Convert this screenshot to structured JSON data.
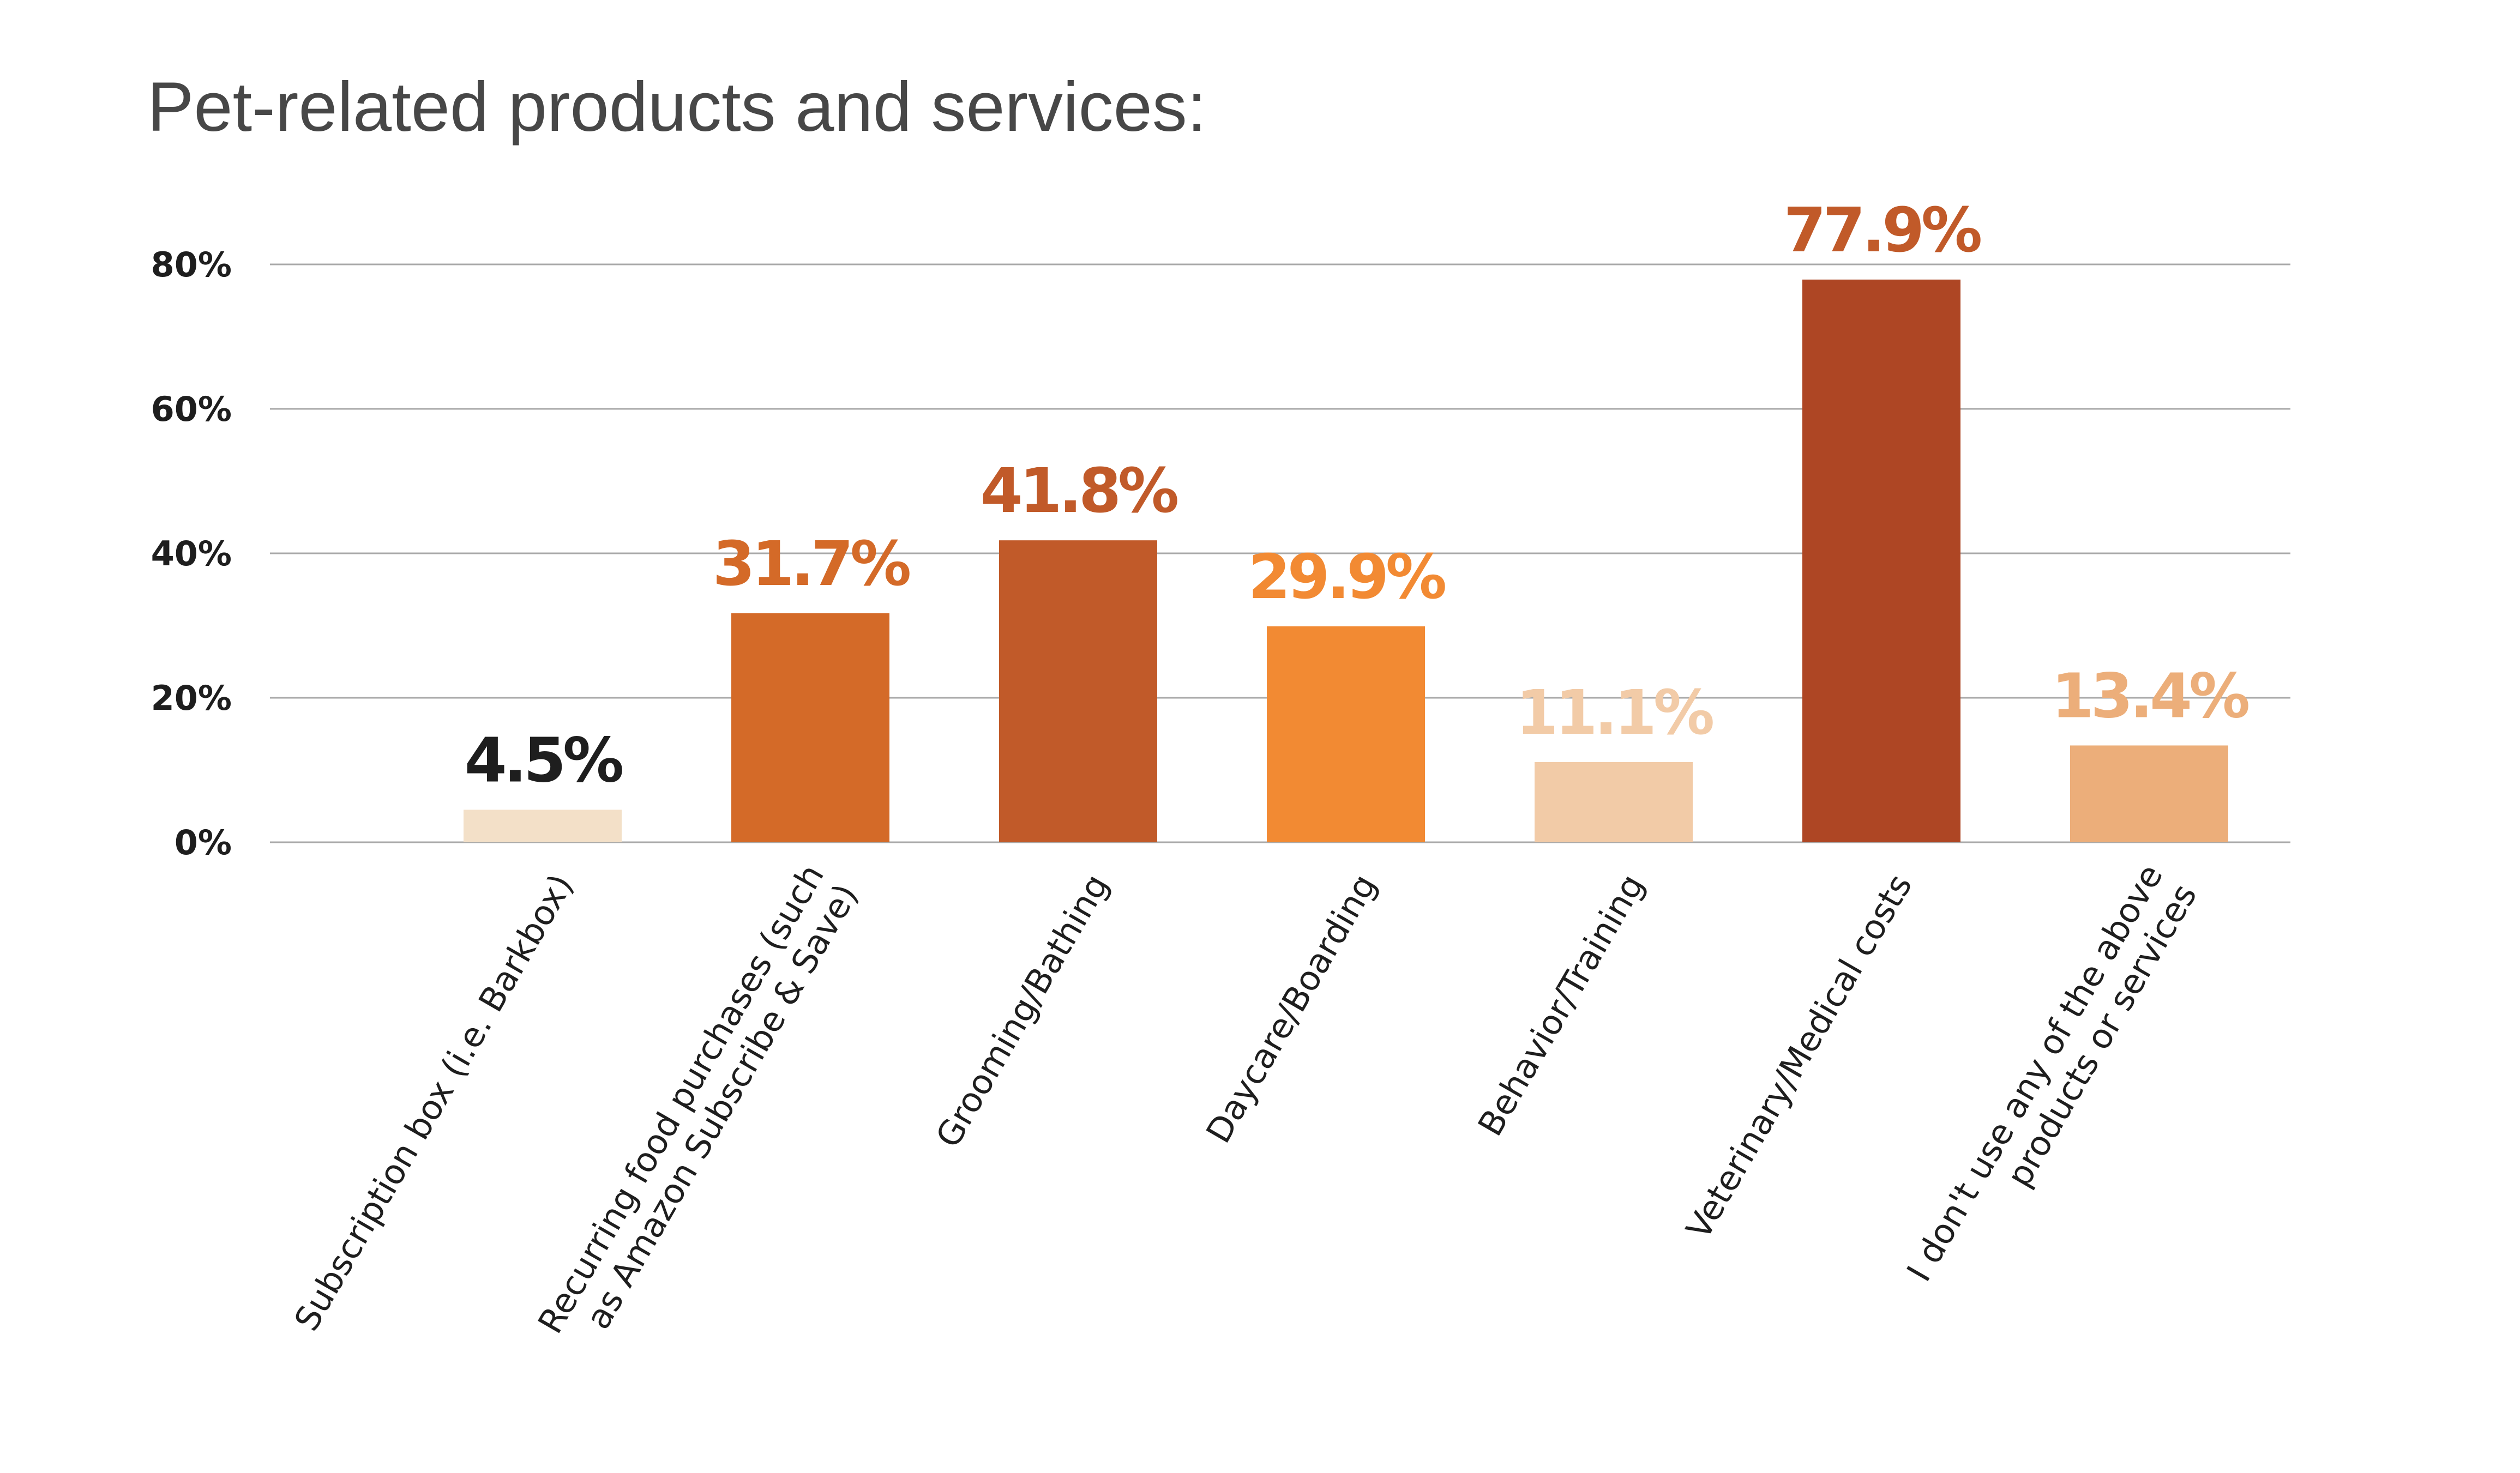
{
  "chart_data": {
    "type": "bar",
    "title": "Pet-related products and services:",
    "xlabel": "",
    "ylabel": "",
    "ylim": [
      0,
      80
    ],
    "yticks": [
      0,
      20,
      40,
      60,
      80
    ],
    "ytick_labels": [
      "0%",
      "20%",
      "40%",
      "60%",
      "80%"
    ],
    "grid": true,
    "legend": "none",
    "categories": [
      "Subscription box (i.e. Barkbox)",
      "Recurring food purchases (such as Amazon Subscribe & Save)",
      "Grooming/Bathing",
      "Daycare/Boarding",
      "Behavior/Training",
      "Veterinary/Medical costs",
      "I don't use any of the above products or services"
    ],
    "category_label_lines": [
      [
        "Subscription box (i.e. Barkbox)"
      ],
      [
        "Recurring food purchases (such",
        "as Amazon Subscribe & Save)"
      ],
      [
        "Grooming/Bathing"
      ],
      [
        "Daycare/Boarding"
      ],
      [
        "Behavior/Training"
      ],
      [
        "Veterinary/Medical costs"
      ],
      [
        "I don't use any of the above",
        "products or services"
      ]
    ],
    "values": [
      4.5,
      31.7,
      41.8,
      29.9,
      11.1,
      77.9,
      13.4
    ],
    "data_labels": [
      "4.5%",
      "31.7%",
      "41.8%",
      "29.9%",
      "11.1%",
      "77.9%",
      "13.4%"
    ],
    "bar_colors": [
      "#f3e0c8",
      "#d46a28",
      "#c15a29",
      "#f28a33",
      "#f2cba7",
      "#ae4624",
      "#ecae7a"
    ],
    "label_colors": [
      "#1e1e1e",
      "#d46a28",
      "#c15a29",
      "#f28a33",
      "#f2cba7",
      "#c15a29",
      "#ecae7a"
    ]
  }
}
